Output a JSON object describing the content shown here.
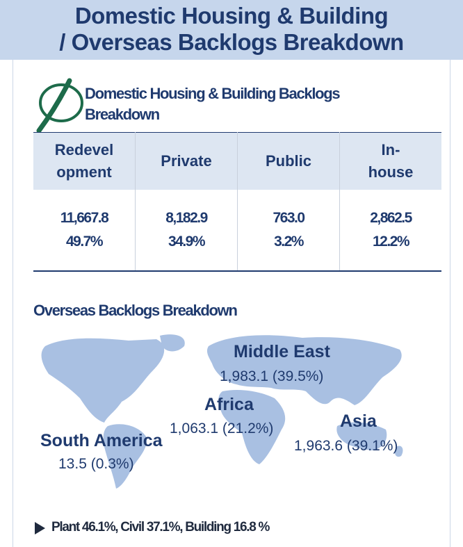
{
  "header": {
    "title": [
      "Domestic Housing & Building",
      "/ Overseas Backlogs Breakdown"
    ]
  },
  "domestic": {
    "title": [
      "Domestic Housing & Building Backlogs",
      "Breakdown"
    ],
    "table": {
      "headers": [
        [
          "Redevel",
          "opment"
        ],
        [
          "Private"
        ],
        [
          "Public"
        ],
        [
          "In-",
          "house"
        ]
      ],
      "rows": [
        [
          "11,667.8",
          "8,182.9",
          "763.0",
          "2,862.5"
        ],
        [
          "49.7%",
          "34.9%",
          "3.2%",
          "12.2%"
        ]
      ]
    }
  },
  "overseas": {
    "title": "Overseas Backlogs Breakdown",
    "regions": [
      {
        "name": "Middle East",
        "value": "1,983.1 (39.5%)"
      },
      {
        "name": "Africa",
        "value": "1,063.1 (21.2%)"
      },
      {
        "name": "Asia",
        "value": "1,963.6 (39.1%)"
      },
      {
        "name": "South America",
        "value": "13.5 (0.3%)"
      }
    ]
  },
  "footer": {
    "text": "Plant 46.1%, Civil 37.1%, Building 16.8 %"
  }
}
